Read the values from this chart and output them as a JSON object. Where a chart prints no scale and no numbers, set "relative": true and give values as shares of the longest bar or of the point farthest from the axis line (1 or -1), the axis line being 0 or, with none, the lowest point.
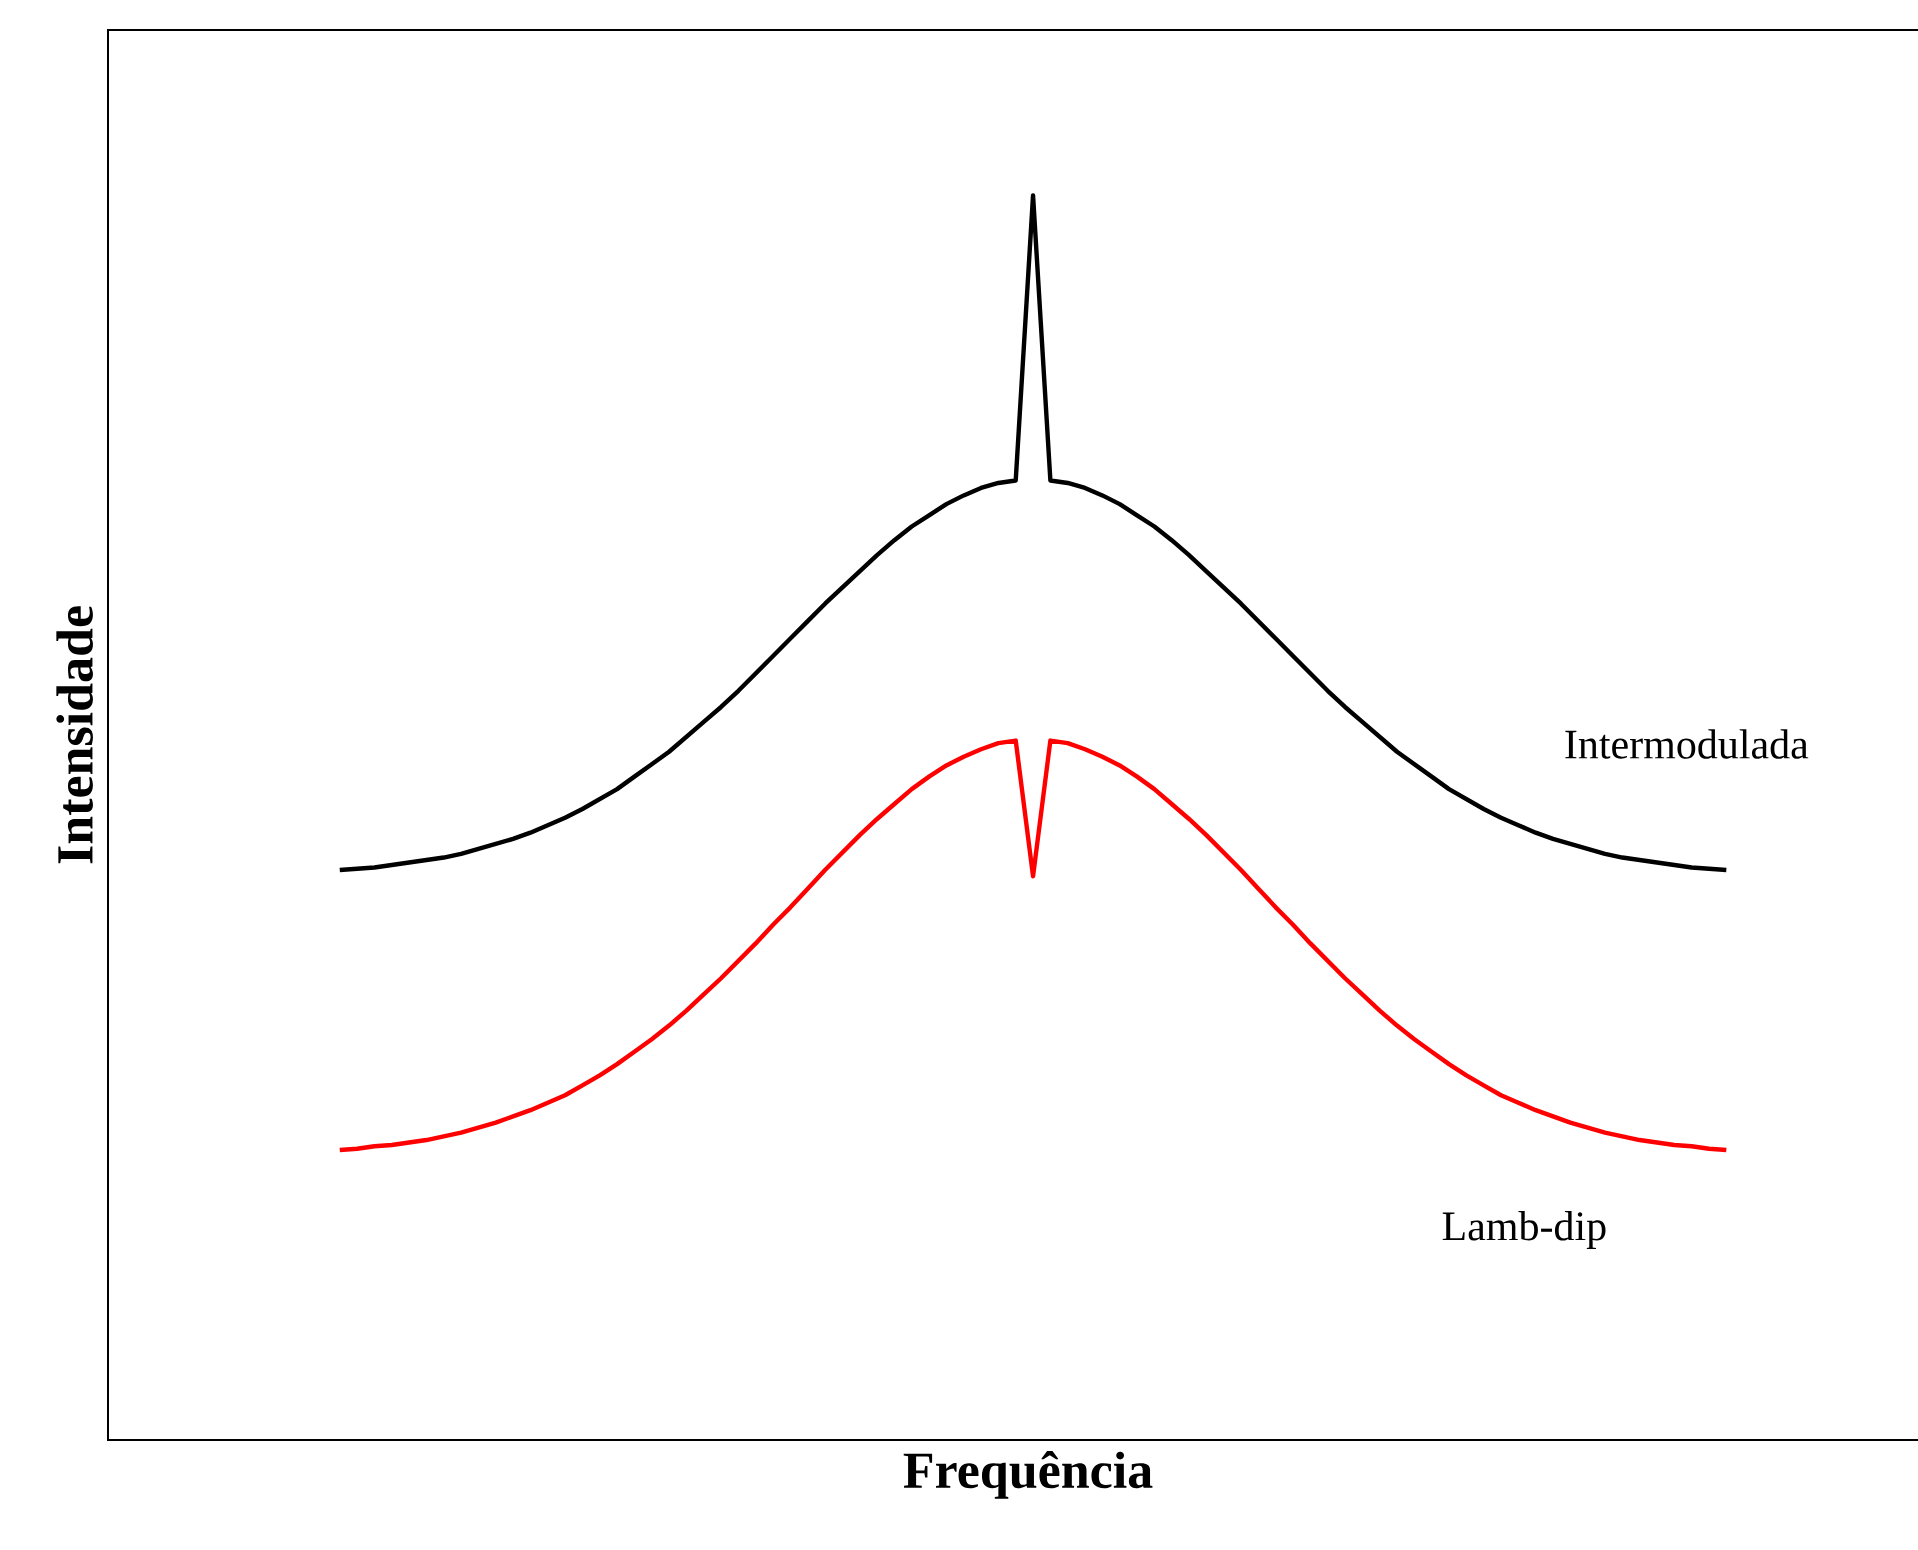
{
  "chart_data": {
    "type": "line",
    "relative": true,
    "xlabel": "Frequência",
    "ylabel": "Intensidade",
    "categories": [
      null,
      null,
      null,
      null,
      null,
      null,
      null,
      null,
      null,
      null,
      null,
      null,
      null,
      null,
      null,
      null,
      null,
      null,
      null,
      null,
      null,
      null,
      null,
      null,
      null,
      null,
      null,
      null,
      null,
      null,
      null,
      null,
      null,
      null,
      null,
      null,
      null,
      null,
      null,
      null,
      null,
      null,
      null,
      null,
      null,
      null,
      null,
      null,
      null,
      null,
      null,
      null,
      null,
      null,
      null,
      null,
      null,
      null,
      null,
      null,
      null,
      null,
      null,
      null,
      null,
      null,
      null,
      null,
      null,
      null,
      null,
      null,
      null,
      null,
      null,
      null,
      null,
      null,
      null,
      null,
      null
    ],
    "series": [
      {
        "name": "Intermodulada",
        "color": "#000000",
        "values": [
          0.458,
          0.459,
          0.46,
          0.462,
          0.464,
          0.466,
          0.468,
          0.471,
          0.475,
          0.479,
          0.483,
          0.488,
          0.494,
          0.5,
          0.507,
          0.515,
          0.523,
          0.533,
          0.543,
          0.553,
          0.565,
          0.577,
          0.589,
          0.602,
          0.616,
          0.63,
          0.644,
          0.658,
          0.672,
          0.685,
          0.698,
          0.711,
          0.723,
          0.734,
          0.743,
          0.752,
          0.759,
          0.765,
          0.769,
          0.771,
          1.0,
          0.771,
          0.769,
          0.765,
          0.759,
          0.752,
          0.743,
          0.734,
          0.723,
          0.711,
          0.698,
          0.685,
          0.672,
          0.658,
          0.644,
          0.63,
          0.616,
          0.602,
          0.589,
          0.577,
          0.565,
          0.553,
          0.543,
          0.533,
          0.523,
          0.515,
          0.507,
          0.5,
          0.494,
          0.488,
          0.483,
          0.479,
          0.475,
          0.471,
          0.468,
          0.466,
          0.464,
          0.462,
          0.46,
          0.459,
          0.458
        ]
      },
      {
        "name": "Lamb-dip",
        "color": "#ff0000",
        "values": [
          0.233,
          0.234,
          0.236,
          0.237,
          0.239,
          0.241,
          0.244,
          0.247,
          0.251,
          0.255,
          0.26,
          0.265,
          0.271,
          0.277,
          0.285,
          0.293,
          0.302,
          0.312,
          0.322,
          0.333,
          0.345,
          0.358,
          0.371,
          0.385,
          0.399,
          0.414,
          0.428,
          0.443,
          0.458,
          0.472,
          0.486,
          0.499,
          0.511,
          0.523,
          0.533,
          0.542,
          0.549,
          0.555,
          0.56,
          0.562,
          0.453,
          0.562,
          0.56,
          0.555,
          0.549,
          0.542,
          0.533,
          0.523,
          0.511,
          0.499,
          0.486,
          0.472,
          0.458,
          0.443,
          0.428,
          0.414,
          0.399,
          0.385,
          0.371,
          0.358,
          0.345,
          0.333,
          0.322,
          0.312,
          0.302,
          0.293,
          0.285,
          0.277,
          0.271,
          0.265,
          0.26,
          0.255,
          0.251,
          0.247,
          0.244,
          0.241,
          0.239,
          0.237,
          0.236,
          0.234,
          0.233
        ]
      }
    ]
  }
}
